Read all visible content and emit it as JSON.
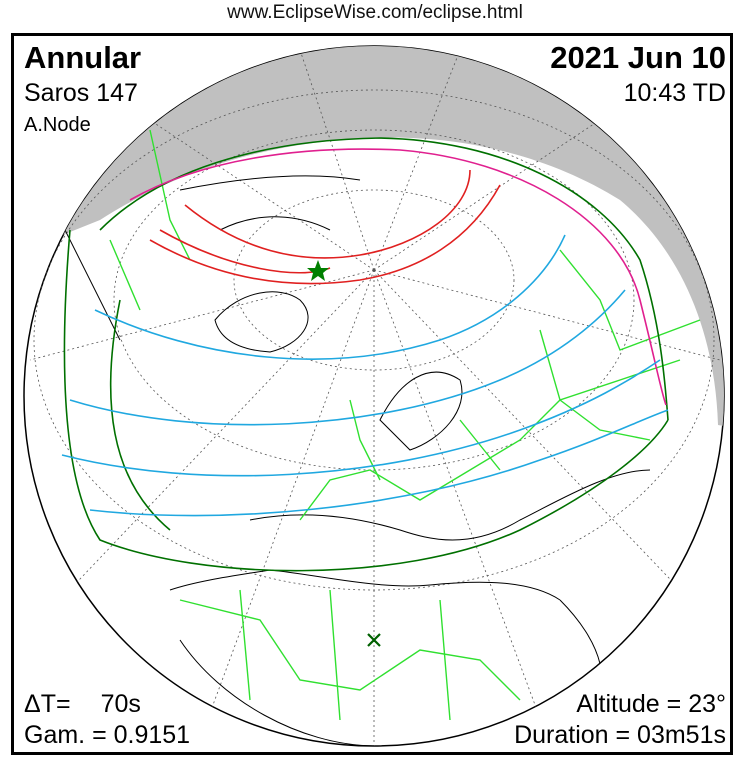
{
  "source_url": "www.EclipseWise.com/eclipse.html",
  "eclipse": {
    "type": "Annular",
    "saros": "Saros 147",
    "node": "A.Node",
    "date": "2021 Jun 10",
    "time": "10:43 TD",
    "delta_t_label": "ΔT=",
    "delta_t_value": "70s",
    "gamma": "Gam. = 0.9151",
    "altitude": "Altitude = 23°",
    "duration": "Duration = 03m51s"
  },
  "colors": {
    "night": "#c0c0c0",
    "penumbra_limits": "#007000",
    "rise_set": "#e0208f",
    "central_path": "#e02020",
    "magnitude_lines": "#20a8e0",
    "borders": "#30e030",
    "greatest_eclipse_marker": "#008000"
  },
  "markers": {
    "greatest_eclipse": "star-icon",
    "sub_solar_point": "x-icon"
  }
}
